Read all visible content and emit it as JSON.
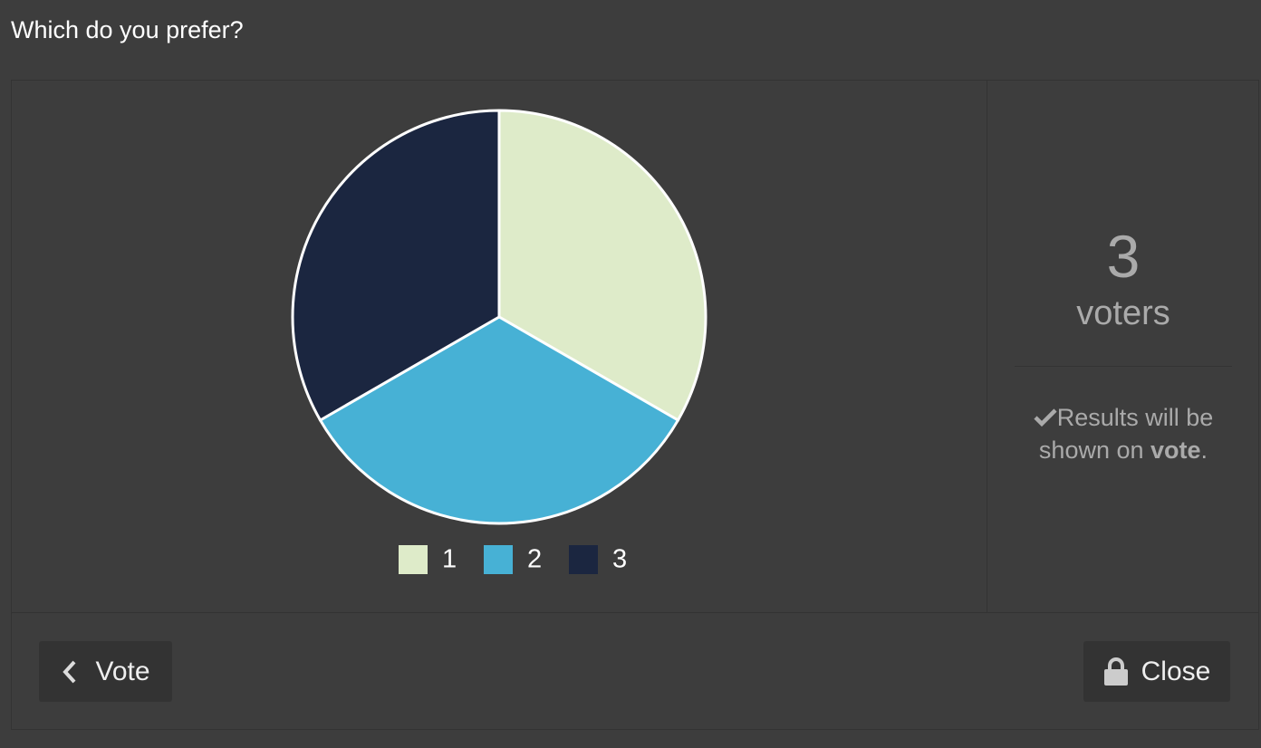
{
  "title": "Which do you prefer?",
  "chart_data": {
    "type": "pie",
    "categories": [
      "1",
      "2",
      "3"
    ],
    "values": [
      1,
      1,
      1
    ],
    "colors": [
      "#deebc9",
      "#47b1d5",
      "#1b2640"
    ]
  },
  "voters": {
    "count": "3",
    "label": "voters"
  },
  "notice": {
    "text": "Results will be shown on ",
    "emphasis": "vote",
    "end": "."
  },
  "buttons": {
    "back": "Vote",
    "close": "Close"
  }
}
